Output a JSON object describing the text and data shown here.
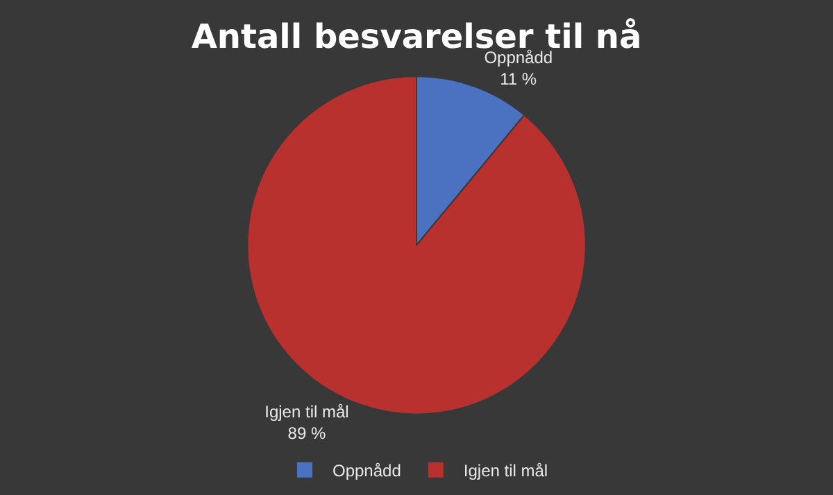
{
  "chart_data": {
    "type": "pie",
    "title": "Antall besvarelser til nå",
    "categories": [
      "Oppnådd",
      "Igjen til mål"
    ],
    "values": [
      11,
      89
    ],
    "value_labels": [
      "11 %",
      "89 %"
    ],
    "colors": [
      "#4a72c0",
      "#b8312f"
    ],
    "legend": "bottom"
  }
}
